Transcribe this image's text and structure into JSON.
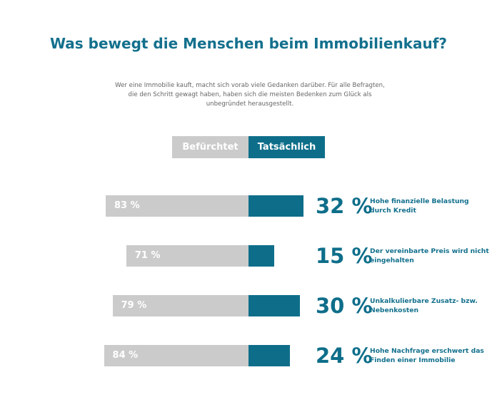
{
  "chart_data": {
    "type": "bar",
    "orientation": "horizontal-diverging",
    "title": "Was bewegt die Menschen beim Immobilienkauf?",
    "subtitle": "Wer eine Immobilie kauft, macht sich vorab viele Gedanken darüber. Für alle Befragten, die den Schritt gewagt haben, haben sich die meisten Bedenken zum Glück als unbegründet herausgestellt.",
    "legend": [
      "Befürchtet",
      "Tatsächlich"
    ],
    "legend_placement": "top-center",
    "unit": "%",
    "categories": [
      "Hohe finanzielle Belastung durch Kredit",
      "Der vereinbarte Preis wird nicht eingehalten",
      "Unkalkulierbare Zusatz- bzw. Nebenkosten",
      "Hohe Nachfrage erschwert das Finden einer Immobilie"
    ],
    "series": [
      {
        "name": "Befürchtet",
        "color": "#cbcbcb",
        "values": [
          83,
          71,
          79,
          84
        ],
        "labels": [
          "83 %",
          "71 %",
          "79 %",
          "84 %"
        ]
      },
      {
        "name": "Tatsächlich",
        "color": "#0e6e8a",
        "values": [
          32,
          15,
          30,
          24
        ],
        "labels": [
          "32 %",
          "15 %",
          "30 %",
          "24 %"
        ]
      }
    ],
    "grid": false
  }
}
